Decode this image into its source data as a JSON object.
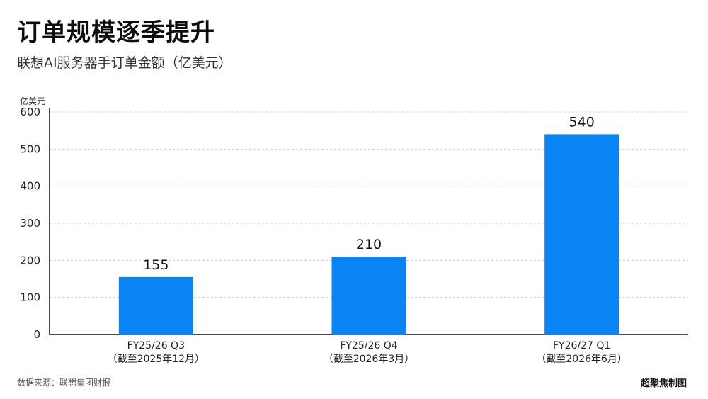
{
  "header": {
    "title": "订单规模逐季提升",
    "subtitle": "联想AI服务器手订单金额（亿美元）"
  },
  "footer": {
    "source": "数据来源：联想集团财报",
    "credit": "超聚焦制图"
  },
  "chart_data": {
    "type": "bar",
    "title": "订单规模逐季提升",
    "subtitle": "联想AI服务器手订单金额（亿美元）",
    "ylabel": "亿美元",
    "xlabel": "",
    "categories": [
      "FY25/26 Q3",
      "FY25/26 Q4",
      "FY26/27 Q1"
    ],
    "category_sublabels": [
      "（截至2025年12月）",
      "（截至2026年3月）",
      "（截至2026年6月）"
    ],
    "values": [
      155,
      210,
      540
    ],
    "data_labels": [
      "155",
      "210",
      "540"
    ],
    "ylim": [
      0,
      600
    ],
    "yticks": [
      0,
      100,
      200,
      300,
      400,
      500,
      600
    ],
    "grid": true,
    "legend": "none",
    "bar_color": "#0a84f5",
    "grid_color": "#cccccc"
  }
}
